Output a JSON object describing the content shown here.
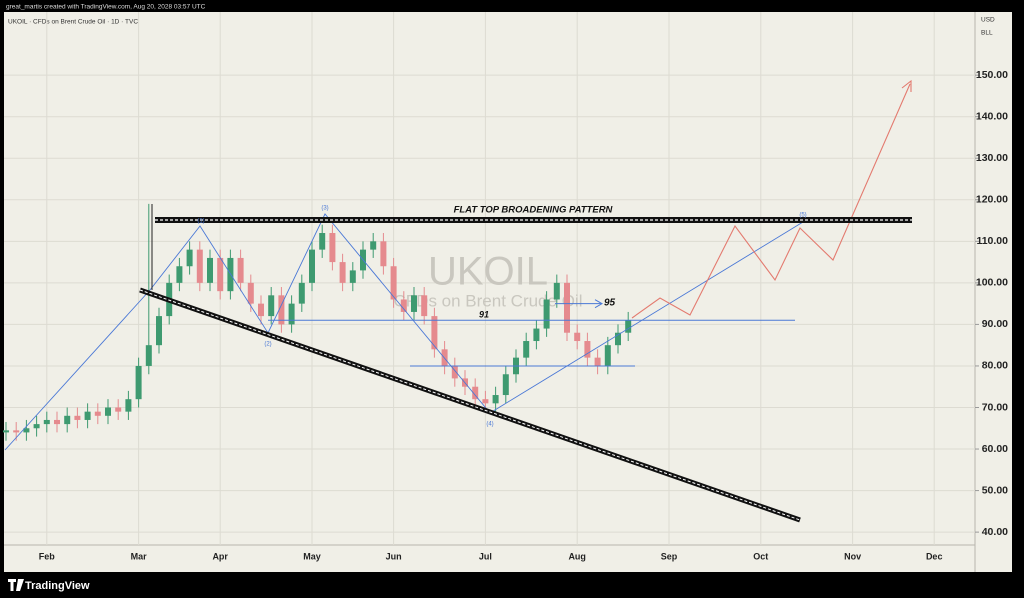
{
  "header": {
    "author_line": "great_martis created with TradingView.com, Aug 20, 2028 03:57 UTC",
    "symbol_line": "UKOIL · CFDs on Brent Crude Oil · 1D · TVC"
  },
  "chart_data": {
    "type": "candlestick",
    "watermark": "UKOIL",
    "watermark_subtitle": "CFDs on Brent Crude Oil",
    "currency": "USD",
    "unit": "BLL",
    "categories": [
      null,
      null,
      null,
      null,
      "Feb",
      null,
      null,
      null,
      null,
      null,
      null,
      null,
      null,
      "Mar",
      null,
      null,
      null,
      null,
      null,
      null,
      null,
      "Apr",
      null,
      null,
      null,
      null,
      null,
      null,
      null,
      null,
      "May",
      null,
      null,
      null,
      null,
      null,
      null,
      null,
      "Jun",
      null,
      null,
      null,
      null,
      null,
      null,
      null,
      null,
      "Jul",
      null,
      null,
      null,
      null,
      null,
      null,
      null,
      null,
      "Aug",
      null,
      null,
      null,
      null,
      null,
      null,
      null,
      null,
      "Sep",
      null,
      null,
      null,
      null,
      null,
      null,
      null,
      null,
      "Oct",
      null,
      null,
      null,
      null,
      null,
      null,
      null,
      null,
      "Nov",
      null,
      null,
      null,
      null,
      null,
      null,
      null,
      "Dec",
      null,
      null,
      null,
      null
    ],
    "open": [
      64,
      64.5,
      64,
      65,
      66,
      67,
      66,
      68,
      67,
      69,
      68,
      70,
      69,
      72,
      80,
      85,
      92,
      100,
      104,
      108,
      100,
      106,
      98,
      106,
      100,
      95,
      92,
      97,
      90,
      95,
      100,
      108,
      112,
      105,
      100,
      103,
      108,
      110,
      104,
      96,
      93,
      97,
      92,
      84,
      80,
      77,
      75,
      72,
      71,
      73,
      78,
      82,
      86,
      89,
      96,
      100,
      88,
      86,
      82,
      80,
      85,
      88,
      null,
      null,
      null,
      null,
      null,
      null,
      null,
      null,
      null,
      null,
      null,
      null,
      null,
      null,
      null,
      null,
      null,
      null,
      null,
      null,
      null,
      null,
      null,
      null,
      null,
      null,
      null,
      null,
      null,
      null,
      null,
      null,
      null,
      null
    ],
    "high": [
      66.5,
      66.5,
      67,
      68,
      69,
      69,
      70,
      70,
      71,
      71,
      72,
      72,
      74,
      82,
      119,
      94,
      102,
      106,
      110,
      110,
      108,
      108,
      108,
      108,
      102,
      97,
      99,
      99,
      97,
      102,
      110,
      114,
      114,
      107,
      105,
      110,
      112,
      112,
      106,
      98,
      99,
      99,
      94,
      86,
      82,
      79,
      77,
      74,
      75,
      80,
      84,
      88,
      91,
      98,
      102,
      102,
      90,
      88,
      84,
      87,
      90,
      93,
      null,
      null,
      null,
      null,
      null,
      null,
      null,
      null,
      null,
      null,
      null,
      null,
      null,
      null,
      null,
      null,
      null,
      null,
      null,
      null,
      null,
      null,
      null,
      null,
      null,
      null,
      null,
      null,
      null,
      null,
      null,
      null,
      null,
      null
    ],
    "low": [
      62,
      62,
      62,
      63,
      64,
      64,
      64,
      65,
      65,
      66,
      66,
      67,
      67,
      70,
      78,
      83,
      90,
      98,
      102,
      98,
      98,
      96,
      96,
      98,
      93,
      90,
      90,
      88,
      88,
      93,
      98,
      106,
      103,
      98,
      98,
      101,
      106,
      102,
      94,
      91,
      91,
      90,
      82,
      78,
      75,
      73,
      70,
      69,
      69,
      71,
      76,
      80,
      84,
      87,
      94,
      86,
      84,
      80,
      78,
      78,
      83,
      86,
      null,
      null,
      null,
      null,
      null,
      null,
      null,
      null,
      null,
      null,
      null,
      null,
      null,
      null,
      null,
      null,
      null,
      null,
      null,
      null,
      null,
      null,
      null,
      null,
      null,
      null,
      null,
      null,
      null,
      null,
      null,
      null,
      null,
      null
    ],
    "close": [
      64.5,
      64,
      65,
      66,
      67,
      66,
      68,
      67,
      69,
      68,
      70,
      69,
      72,
      80,
      85,
      92,
      100,
      104,
      108,
      100,
      106,
      98,
      106,
      100,
      95,
      92,
      97,
      90,
      95,
      100,
      108,
      112,
      105,
      100,
      103,
      108,
      110,
      104,
      96,
      93,
      97,
      92,
      84,
      80,
      77,
      75,
      72,
      71,
      73,
      78,
      82,
      86,
      89,
      96,
      100,
      88,
      86,
      82,
      80,
      85,
      88,
      91,
      null,
      null,
      null,
      null,
      null,
      null,
      null,
      null,
      null,
      null,
      null,
      null,
      null,
      null,
      null,
      null,
      null,
      null,
      null,
      null,
      null,
      null,
      null,
      null,
      null,
      null,
      null,
      null,
      null,
      null,
      null,
      null,
      null,
      null
    ],
    "up_color": "#3e9a70",
    "down_color": "#e58a8e",
    "ylim": [
      36.9,
      165.2
    ],
    "yticks": [
      {
        "value": 40,
        "label": "40.00"
      },
      {
        "value": 50,
        "label": "50.00"
      },
      {
        "value": 60,
        "label": "60.00"
      },
      {
        "value": 70,
        "label": "70.00"
      },
      {
        "value": 80,
        "label": "80.00"
      },
      {
        "value": 90,
        "label": "90.00"
      },
      {
        "value": 100,
        "label": "100.00"
      },
      {
        "value": 110,
        "label": "110.00"
      },
      {
        "value": 120,
        "label": "120.00"
      },
      {
        "value": 130,
        "label": "130.00"
      },
      {
        "value": 140,
        "label": "140.00"
      },
      {
        "value": 150,
        "label": "150.00"
      }
    ],
    "grid": true,
    "annotations": {
      "pattern": "FLAT TOP BROADENING PATTERN",
      "target_level": 95,
      "support_level": 91,
      "waves": [
        "(1)",
        "(2)",
        "(3)",
        "(4)",
        "(5)"
      ]
    }
  },
  "footer": {
    "brand": "TradingView"
  }
}
